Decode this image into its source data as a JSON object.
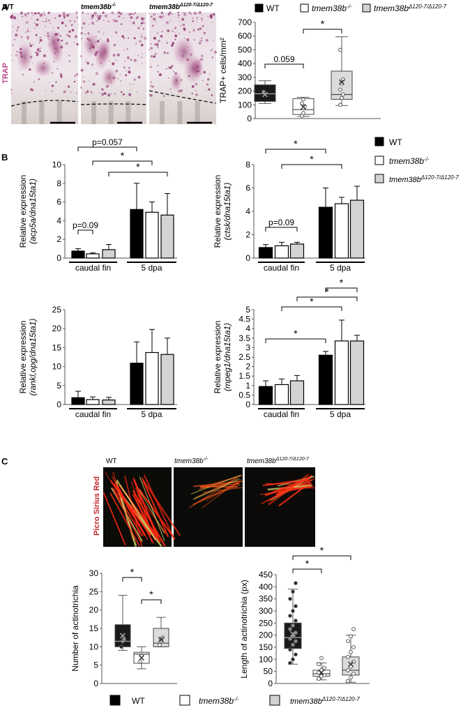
{
  "panel_a": {
    "label": "A",
    "stain_label": "TRAP",
    "image_labels": [
      "WT",
      "tmem38b",
      "tmem38b"
    ],
    "legend": [
      {
        "name": "WT",
        "sup": ""
      },
      {
        "name": "tmem38b",
        "sup": "-/-"
      },
      {
        "name": "tmem38b",
        "sup": "Δ120-7/Δ120-7"
      }
    ]
  },
  "panel_b": {
    "label": "B",
    "legend": [
      {
        "name": "WT",
        "sup": ""
      },
      {
        "name": "tmem38b",
        "sup": "-/-"
      },
      {
        "name": "tmem38b",
        "sup": "Δ120-7/Δ120-7"
      }
    ]
  },
  "panel_c": {
    "label": "C",
    "stain_label": "Picro Sirius Red",
    "image_labels": [
      "WT",
      "tmem38b",
      "tmem38b"
    ],
    "legend": [
      {
        "name": "WT",
        "sup": ""
      },
      {
        "name": "tmem38b",
        "sup": "-/-"
      },
      {
        "name": "tmem38b",
        "sup": "Δ120-7/Δ120-7"
      }
    ]
  },
  "colors": {
    "wt": "#000000",
    "ko": "#ffffff",
    "mut": "#d3d3d3",
    "trap": "#b8478a",
    "sirius": "#c1272d"
  },
  "chart_data": [
    {
      "id": "a_box",
      "type": "box",
      "ylabel": "TRAP+ cells/mm²",
      "ylim": [
        0,
        700
      ],
      "yticks": [
        "0",
        "100",
        "200",
        "300",
        "400",
        "500",
        "600",
        "700"
      ],
      "series": [
        {
          "name": "WT",
          "min": 110,
          "q1": 125,
          "median": 180,
          "q3": 245,
          "max": 275,
          "mean": 175,
          "points": [
            195
          ]
        },
        {
          "name": "tmem38b-/-",
          "min": 15,
          "q1": 30,
          "median": 65,
          "q3": 145,
          "max": 155,
          "mean": 85,
          "points": [
            20,
            40,
            90,
            110,
            140
          ]
        },
        {
          "name": "tmem38bΔ120-7/Δ120-7",
          "min": 95,
          "q1": 140,
          "median": 175,
          "q3": 345,
          "max": 595,
          "mean": 265,
          "points": [
            100,
            150,
            175,
            210,
            255,
            285,
            500
          ]
        }
      ],
      "annotations": [
        "0.059",
        "*"
      ]
    },
    {
      "id": "b_acp5a",
      "type": "bar",
      "ylabel": "Relative expression",
      "ylabel_italic": "(acp5a/dna15ta1)",
      "ylim": [
        0,
        10
      ],
      "yticks": [
        "0",
        "2",
        "4",
        "6",
        "8",
        "10"
      ],
      "groups": [
        "caudal fin",
        "5 dpa"
      ],
      "values": [
        [
          0.75,
          0.45,
          0.9
        ],
        [
          5.2,
          4.9,
          4.6
        ]
      ],
      "errors": [
        [
          0.25,
          0.1,
          0.55
        ],
        [
          2.8,
          1.1,
          2.3
        ]
      ],
      "annotations": [
        "p=0.057",
        "*",
        "*",
        "p=0.09"
      ]
    },
    {
      "id": "b_ctsk",
      "type": "bar",
      "ylabel": "Relative expression",
      "ylabel_italic": "(ctsk/dna15ta1)",
      "ylim": [
        0,
        8
      ],
      "yticks": [
        "0",
        "2",
        "4",
        "6",
        "8"
      ],
      "groups": [
        "caudal fin",
        "5 dpa"
      ],
      "values": [
        [
          0.9,
          1.05,
          1.2
        ],
        [
          4.35,
          4.65,
          4.95
        ]
      ],
      "errors": [
        [
          0.25,
          0.3,
          0.15
        ],
        [
          1.65,
          0.55,
          1.2
        ]
      ],
      "annotations": [
        "*",
        "*",
        "p=0.09"
      ]
    },
    {
      "id": "b_rankl",
      "type": "bar",
      "ylabel": "Relative expression",
      "ylabel_italic": "(rankl,opg/dna15ta1)",
      "ylim": [
        0,
        25
      ],
      "yticks": [
        "0",
        "5",
        "10",
        "15",
        "20",
        "25"
      ],
      "groups": [
        "caudal fin",
        "5 dpa"
      ],
      "values": [
        [
          1.8,
          1.3,
          1.2
        ],
        [
          10.9,
          13.7,
          13.2
        ]
      ],
      "errors": [
        [
          1.7,
          0.7,
          0.7
        ],
        [
          5.6,
          6.1,
          4.3
        ]
      ],
      "annotations": []
    },
    {
      "id": "b_mpeg1",
      "type": "bar",
      "ylabel": "Relative expression",
      "ylabel_italic": "(mpeg1/dna15ta1)",
      "ylim": [
        0,
        5
      ],
      "yticks": [
        "0",
        "0.5",
        "1",
        "1.5",
        "2",
        "2.5",
        "3",
        "3.5",
        "4",
        "4.5",
        "5"
      ],
      "groups": [
        "caudal fin",
        "5 dpa"
      ],
      "values": [
        [
          0.95,
          1.05,
          1.25
        ],
        [
          2.6,
          3.35,
          3.35
        ]
      ],
      "errors": [
        [
          0.3,
          0.3,
          0.28
        ],
        [
          0.2,
          1.1,
          0.3
        ]
      ],
      "annotations": [
        "*",
        "*",
        "*",
        "*"
      ]
    },
    {
      "id": "c_number",
      "type": "box",
      "ylabel": "Number of actinotrichia",
      "ylim": [
        0,
        30
      ],
      "yticks": [
        "0",
        "5",
        "10",
        "15",
        "20",
        "25",
        "30"
      ],
      "series": [
        {
          "name": "WT",
          "min": 9,
          "q1": 10,
          "median": 11.5,
          "q3": 16,
          "max": 24,
          "mean": 13,
          "points": [
            10,
            11.5,
            12
          ]
        },
        {
          "name": "tmem38b-/-",
          "min": 4,
          "q1": 5.5,
          "median": 8,
          "q3": 8.5,
          "max": 10,
          "mean": 7,
          "points": [
            6,
            7.5
          ]
        },
        {
          "name": "tmem38bΔ120-7/Δ120-7",
          "min": 10,
          "q1": 10,
          "median": 11,
          "q3": 15,
          "max": 18,
          "mean": 12,
          "points": [
            10.5,
            12,
            12.5
          ]
        }
      ],
      "annotations": [
        "*",
        "*"
      ]
    },
    {
      "id": "c_length",
      "type": "box",
      "ylabel": "Length of actinotrichia (px)",
      "ylim": [
        0,
        450
      ],
      "yticks": [
        "0",
        "50",
        "100",
        "150",
        "200",
        "250",
        "300",
        "350",
        "400",
        "450"
      ],
      "series": [
        {
          "name": "WT",
          "min": 80,
          "q1": 145,
          "median": 190,
          "q3": 250,
          "max": 390,
          "mean": 205,
          "points": [
            85,
            100,
            120,
            140,
            160,
            175,
            185,
            195,
            210,
            225,
            240,
            260,
            280,
            300,
            320,
            350,
            380,
            415
          ]
        },
        {
          "name": "tmem38b-/-",
          "min": 15,
          "q1": 30,
          "median": 40,
          "q3": 55,
          "max": 85,
          "mean": 45,
          "points": [
            20,
            30,
            35,
            45,
            55,
            65,
            80,
            105
          ]
        },
        {
          "name": "tmem38bΔ120-7/Δ120-7",
          "min": 5,
          "q1": 35,
          "median": 55,
          "q3": 110,
          "max": 200,
          "mean": 80,
          "points": [
            10,
            25,
            40,
            55,
            70,
            90,
            110,
            130,
            150,
            175,
            195,
            225
          ]
        }
      ],
      "annotations": [
        "*",
        "*"
      ]
    }
  ]
}
